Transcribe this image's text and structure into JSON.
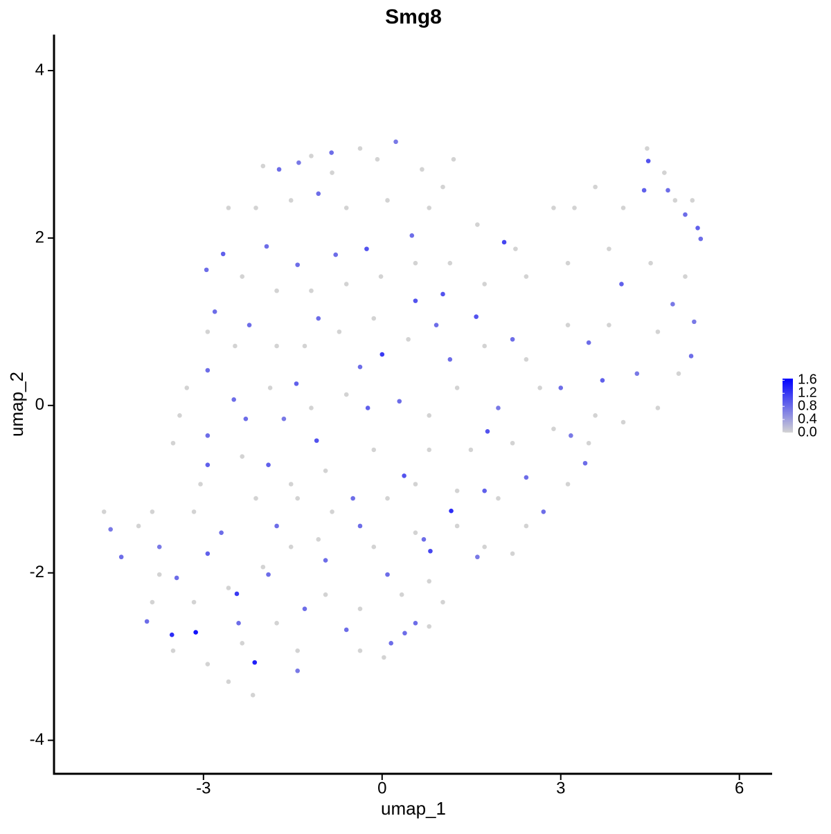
{
  "chart_data": {
    "type": "scatter",
    "title": "Smg8",
    "xlabel": "umap_1",
    "ylabel": "umap_2",
    "xlim": [
      -5.51,
      6.55
    ],
    "ylim": [
      -4.4,
      4.43
    ],
    "xticks": [
      -3,
      0,
      3,
      6
    ],
    "yticks": [
      -4,
      -2,
      0,
      2,
      4
    ],
    "x": [
      -2.0,
      -1.19,
      -0.84,
      -0.37,
      -0.08,
      0.67,
      1.02,
      1.2,
      1.6,
      2.24,
      2.88,
      3.23,
      3.58,
      4.05,
      4.45,
      4.74,
      4.92,
      5.21,
      -2.58,
      -2.12,
      -1.53,
      -0.6,
      0.09,
      0.79,
      -2.35,
      -1.77,
      -1.19,
      -0.6,
      -0.02,
      0.56,
      1.14,
      1.72,
      2.42,
      3.12,
      3.81,
      4.51,
      5.09,
      -2.93,
      -2.47,
      -1.77,
      -1.3,
      -0.72,
      -0.14,
      0.44,
      1.72,
      2.42,
      3.12,
      3.81,
      4.63,
      4.98,
      4.63,
      4.05,
      3.58,
      2.65,
      1.26,
      0.79,
      -0.6,
      -1.19,
      -1.88,
      -3.28,
      -3.4,
      -3.51,
      -3.05,
      -2.35,
      -1.53,
      -0.95,
      -0.14,
      0.79,
      1.49,
      2.19,
      2.88,
      3.47,
      3.12,
      2.42,
      1.95,
      1.26,
      0.56,
      0.09,
      -0.84,
      -1.42,
      -2.12,
      -3.16,
      -3.86,
      -4.67,
      -4.09,
      -3.74,
      -3.16,
      -2.58,
      -2.0,
      -1.53,
      -1.07,
      -0.14,
      0.56,
      1.26,
      1.72,
      0.79,
      0.33,
      -0.37,
      -0.95,
      -1.77,
      -2.35,
      -2.58,
      -2.17,
      -2.93,
      -3.51,
      -3.86,
      -1.42,
      -0.37,
      0.03,
      0.79,
      1.02,
      2.19,
      -3.13,
      -3.53,
      -2.14,
      -2.44,
      2.05,
      4.47,
      5.3,
      5.35,
      0,
      1.16,
      0.81,
      1.77,
      -1.1,
      -1.44,
      0.5,
      0.23,
      -4.56,
      -4.38,
      -3.95,
      -2.93,
      -2.93,
      -1.91,
      -0.24,
      0.37,
      -0.49,
      -1.91,
      -1.42,
      0.56,
      1.6,
      2.71,
      3.41,
      3.7,
      3.47,
      4.02,
      4.4,
      4.8,
      5.09,
      5.19,
      5.24,
      4.88,
      4.28,
      3.17,
      3.0,
      2.19,
      1.58,
      1.02,
      0.91,
      0.56,
      -0.26,
      -0.78,
      -1.42,
      -1.94,
      -2.67,
      -2.95,
      -2.93,
      -2.49,
      -2.29,
      -1.65,
      -1.4,
      -0.85,
      -1.73,
      -1.07,
      -2.23,
      -2.81,
      -1.07,
      -0.37,
      0.29,
      1.14,
      1.72,
      0.7,
      0.09,
      -0.95,
      -1.3,
      -0.6,
      0.38,
      0.15,
      -2.41,
      -2.93,
      -3.45,
      -3.74,
      -2.7,
      -1.77,
      -0.37,
      2.42,
      1.95
    ],
    "y": [
      2.86,
      2.98,
      2.78,
      3.07,
      2.94,
      2.82,
      2.61,
      2.94,
      2.16,
      1.87,
      2.36,
      2.36,
      2.61,
      2.36,
      3.07,
      2.78,
      2.45,
      2.45,
      2.36,
      2.36,
      2.45,
      2.36,
      2.45,
      2.36,
      1.54,
      1.37,
      1.37,
      1.45,
      1.54,
      1.7,
      1.7,
      1.45,
      1.54,
      1.7,
      1.87,
      1.7,
      1.54,
      0.88,
      0.71,
      0.71,
      0.71,
      0.88,
      1.04,
      0.79,
      0.71,
      0.55,
      0.96,
      0.96,
      0.88,
      0.38,
      -0.03,
      -0.2,
      -0.12,
      0.21,
      0.21,
      -0.12,
      0.13,
      -0.03,
      0.21,
      0.21,
      -0.12,
      -0.45,
      -0.94,
      -0.61,
      -0.94,
      -0.78,
      -0.53,
      -0.53,
      -0.53,
      -0.45,
      -0.28,
      -0.45,
      -0.94,
      -1.44,
      -1.11,
      -1.02,
      -0.94,
      -1.11,
      -1.27,
      -1.11,
      -1.11,
      -1.27,
      -1.27,
      -1.27,
      -1.44,
      -2.02,
      -2.35,
      -2.18,
      -1.93,
      -1.69,
      -1.6,
      -1.69,
      -1.52,
      -1.44,
      -1.69,
      -2.1,
      -2.26,
      -2.43,
      -2.26,
      -2.6,
      -2.84,
      -3.3,
      -3.46,
      -3.09,
      -2.93,
      -2.35,
      -2.93,
      -2.93,
      -3.01,
      -2.64,
      -2.35,
      -1.77,
      -2.71,
      -2.74,
      -3.07,
      -2.25,
      1.95,
      2.92,
      2.12,
      1.99,
      0.61,
      -1.26,
      -1.74,
      -0.31,
      -0.42,
      0.26,
      2.03,
      3.15,
      -1.48,
      -1.81,
      -2.58,
      -0.71,
      -0.36,
      -0.71,
      -0.03,
      -0.84,
      -1.11,
      -2.02,
      -3.17,
      -2.6,
      -1.81,
      -1.27,
      -0.69,
      0.3,
      0.75,
      1.45,
      2.57,
      2.57,
      2.28,
      0.59,
      1.0,
      1.21,
      0.38,
      -0.36,
      0.21,
      0.79,
      1.06,
      1.33,
      0.96,
      1.25,
      1.87,
      1.8,
      1.68,
      1.9,
      1.81,
      1.62,
      0.42,
      0.07,
      -0.16,
      -0.16,
      2.9,
      3.02,
      2.82,
      2.53,
      0.96,
      1.12,
      1.04,
      0.46,
      0.05,
      0.55,
      -1.02,
      -1.6,
      -2.02,
      -1.85,
      -2.43,
      -2.68,
      -2.72,
      -2.84,
      -2.6,
      -1.77,
      -2.06,
      -1.69,
      -1.52,
      -1.44,
      -1.44,
      -0.86,
      -0.03
    ],
    "values": [
      0,
      0,
      0,
      0,
      0,
      0,
      0,
      0,
      0,
      0,
      0,
      0,
      0,
      0,
      0,
      0,
      0,
      0,
      0,
      0,
      0,
      0,
      0,
      0,
      0,
      0,
      0,
      0,
      0,
      0,
      0,
      0,
      0,
      0,
      0,
      0,
      0,
      0,
      0,
      0,
      0,
      0,
      0,
      0,
      0,
      0,
      0,
      0,
      0,
      0,
      0,
      0,
      0,
      0,
      0,
      0,
      0,
      0,
      0,
      0,
      0,
      0,
      0,
      0,
      0,
      0,
      0,
      0,
      0,
      0,
      0,
      0,
      0,
      0,
      0,
      0,
      0,
      0,
      0,
      0,
      0,
      0,
      0,
      0,
      0,
      0,
      0,
      0,
      0,
      0,
      0,
      0,
      0,
      0,
      0,
      0,
      0,
      0,
      0,
      0,
      0,
      0,
      0,
      0,
      0,
      0,
      0,
      0,
      0,
      0,
      0,
      0,
      1.5,
      1.3,
      1.4,
      1.2,
      1.1,
      1.0,
      0.9,
      0.8,
      1.2,
      1.3,
      1.1,
      1.0,
      1.0,
      0.9,
      0.8,
      0.7,
      0.7,
      0.8,
      0.8,
      0.9,
      0.8,
      0.9,
      0.9,
      1.0,
      0.8,
      0.8,
      0.7,
      0.8,
      0.7,
      0.8,
      0.8,
      0.9,
      0.8,
      0.9,
      0.9,
      0.8,
      0.8,
      0.8,
      0.7,
      0.7,
      0.7,
      0.7,
      0.8,
      0.8,
      1.0,
      1.0,
      0.8,
      1.0,
      1.0,
      0.8,
      0.8,
      0.8,
      0.9,
      0.8,
      0.8,
      0.8,
      0.8,
      0.7,
      0.7,
      0.8,
      0.8,
      0.8,
      0.8,
      0.8,
      0.8,
      0.8,
      0.8,
      0.8,
      0.9,
      0.8,
      0.8,
      0.8,
      0.8,
      0.8,
      0.8,
      0.8,
      0.8,
      0.9,
      0.8,
      0.7,
      0.8,
      0.8,
      0.8,
      0.8,
      0.7
    ],
    "colorscale": {
      "low": "#d3d3d3",
      "high": "#0000ff",
      "lim": [
        0,
        1.65
      ],
      "ticks": [
        {
          "value": 0,
          "label": "0.0"
        },
        0.4,
        0.8,
        1.2,
        1.6
      ]
    }
  }
}
